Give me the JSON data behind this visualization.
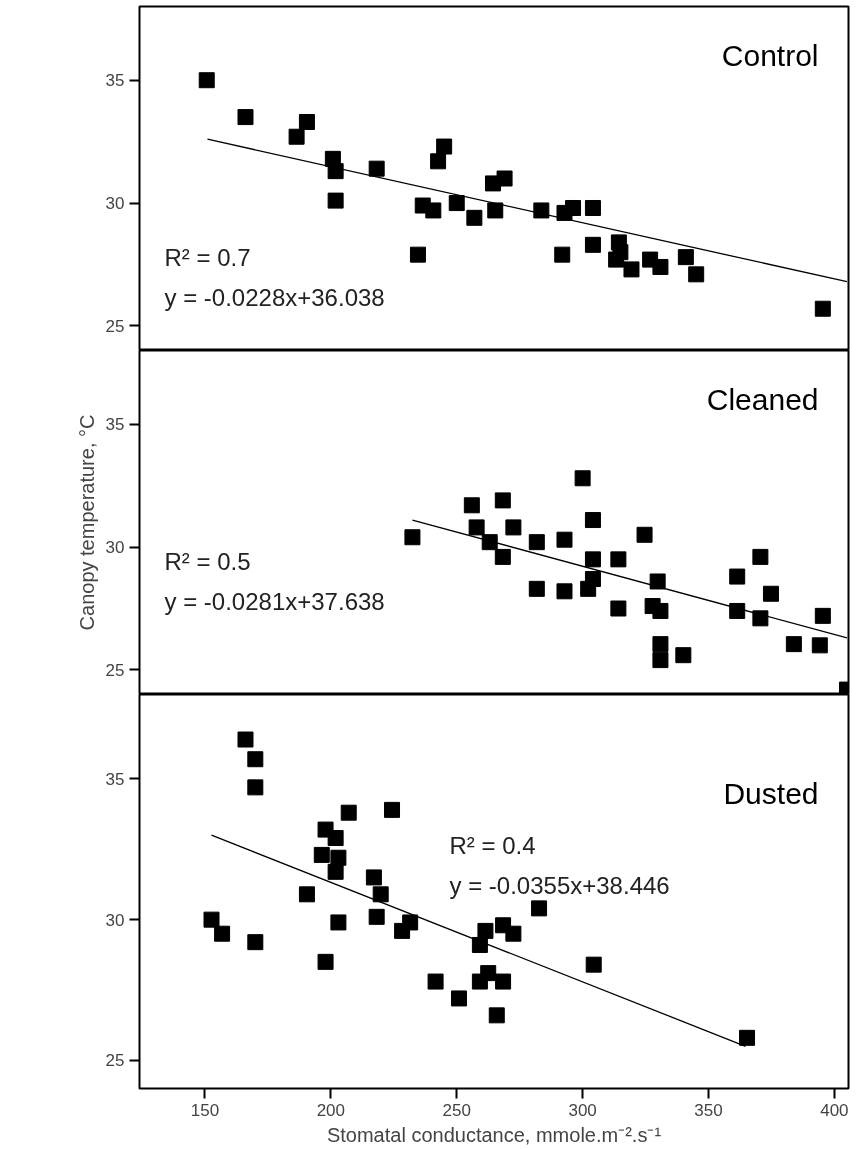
{
  "chart_data": [
    {
      "type": "scatter",
      "title": "Control",
      "annotations": [
        "R² = 0.7",
        "y = -0.0228x+36.038"
      ],
      "xlim": [
        124,
        405.6
      ],
      "ylim": [
        24,
        38
      ],
      "yticks": [
        25,
        30,
        35
      ],
      "tick_labels": "y",
      "series": [
        {
          "marker": "square",
          "color": "#000000",
          "x": [
            150.7,
            166.1,
            186.4,
            190.5,
            200.8,
            201.9,
            201.9,
            218.2,
            234.6,
            236.5,
            240.7,
            242.6,
            245.0,
            250.0,
            257.0,
            264.4,
            265.3,
            269.0,
            283.6,
            291.9,
            292.8,
            296.2,
            304.1,
            304.1,
            314.4,
            315.0,
            313.3,
            319.4,
            326.8,
            330.9,
            341.0,
            345.1,
            395.4
          ],
          "values": [
            35.0,
            33.5,
            32.7,
            33.3,
            31.8,
            31.3,
            30.1,
            31.4,
            27.9,
            29.9,
            29.7,
            31.7,
            32.3,
            30.0,
            29.4,
            30.8,
            29.7,
            31.0,
            29.7,
            27.9,
            29.6,
            29.8,
            29.8,
            28.3,
            28.4,
            28.0,
            27.7,
            27.3,
            27.7,
            27.4,
            27.8,
            27.1,
            25.7
          ]
        },
        {
          "type": "line",
          "marker": "none",
          "color": "#000000",
          "x": [
            151,
            405
          ],
          "values": [
            32.6,
            26.8
          ]
        }
      ]
    },
    {
      "type": "scatter",
      "title": "Cleaned",
      "ylabel": "Canopy temperature, °C",
      "annotations": [
        "R² = 0.5",
        "y = -0.0281x+37.638"
      ],
      "xlim": [
        124,
        405.6
      ],
      "ylim": [
        24,
        38
      ],
      "yticks": [
        25,
        30,
        35
      ],
      "tick_labels": "y",
      "series": [
        {
          "marker": "square",
          "color": "#000000",
          "x": [
            232.4,
            256.0,
            257.9,
            263.1,
            268.3,
            268.3,
            272.5,
            281.8,
            281.8,
            292.8,
            292.8,
            300.0,
            304.1,
            304.1,
            304.1,
            302.2,
            314.2,
            314.2,
            324.6,
            329.8,
            327.8,
            330.9,
            330.9,
            330.9,
            340.0,
            361.4,
            361.4,
            370.6,
            370.6,
            374.8,
            383.9,
            394.2,
            395.4,
            405.0
          ],
          "values": [
            30.4,
            31.7,
            30.8,
            30.2,
            31.9,
            29.6,
            30.8,
            30.2,
            28.3,
            30.3,
            28.2,
            32.8,
            31.1,
            29.5,
            28.7,
            28.3,
            29.5,
            27.5,
            30.5,
            28.6,
            27.6,
            27.4,
            26.05,
            25.4,
            25.6,
            28.8,
            27.4,
            29.6,
            27.1,
            28.1,
            26.05,
            26.0,
            27.2,
            24.2
          ]
        },
        {
          "type": "line",
          "marker": "none",
          "color": "#000000",
          "x": [
            232.4,
            405
          ],
          "values": [
            31.1,
            26.3
          ]
        }
      ]
    },
    {
      "type": "scatter",
      "title": "Dusted",
      "xlabel": "Stomatal conductance, mmole.m⁻².s⁻¹",
      "annotations": [
        "R² = 0.4",
        "y = -0.0355x+38.446"
      ],
      "xlim": [
        124,
        405.6
      ],
      "ylim": [
        24,
        38
      ],
      "xticks": [
        150,
        200,
        250,
        300,
        350,
        400
      ],
      "yticks": [
        25,
        30,
        35
      ],
      "series": [
        {
          "marker": "square",
          "color": "#000000",
          "x": [
            166.1,
            170.0,
            170.0,
            207.1,
            224.3,
            197.9,
            201.9,
            196.4,
            203.0,
            201.9,
            217.1,
            219.8,
            190.5,
            152.6,
            156.8,
            170.0,
            197.9,
            201.9,
            203.0,
            217.1,
            218.2,
            228.3,
            231.5,
            241.6,
            250.9,
            259.2,
            261.4,
            259.2,
            262.5,
            268.4,
            268.4,
            272.5,
            282.7,
            304.4,
            265.9,
            365.3
          ],
          "values": [
            36.4,
            35.7,
            34.7,
            33.8,
            33.9,
            33.2,
            32.9,
            32.3,
            32.2,
            31.7,
            31.5,
            30.9,
            30.9,
            30.0,
            29.5,
            29.2,
            28.5,
            null,
            29.9,
            null,
            30.1,
            29.6,
            29.9,
            27.8,
            27.2,
            29.1,
            29.6,
            27.8,
            28.1,
            27.8,
            29.8,
            29.5,
            30.4,
            28.4,
            26.6,
            25.8
          ]
        },
        {
          "type": "line",
          "marker": "none",
          "color": "#000000",
          "x": [
            152.6,
            364.7
          ],
          "values": [
            33.0,
            25.5
          ]
        }
      ]
    }
  ]
}
